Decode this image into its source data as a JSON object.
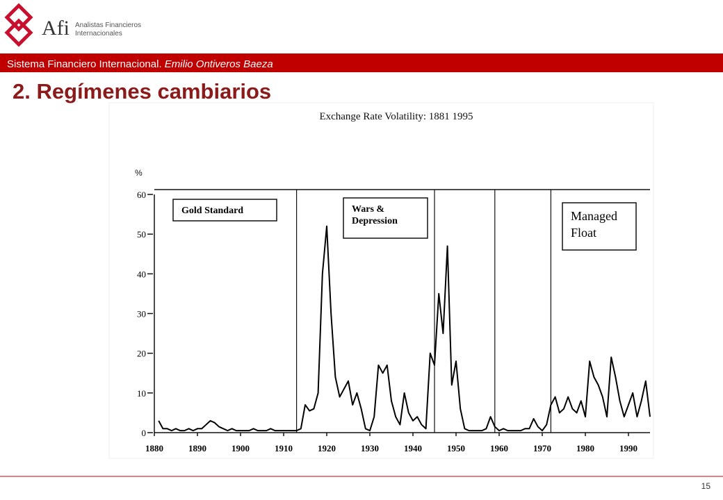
{
  "header": {
    "logo": "Afi",
    "company_line1": "Analistas Financieros",
    "company_line2": "Internacionales",
    "banner": "Sistema Financiero Internacional. ",
    "banner_author": "Emilio Ontiveros Baeza",
    "slide_title": "2. Regímenes cambiarios"
  },
  "page_number": "15",
  "chart_data": {
    "type": "line",
    "title": "Exchange Rate Volatility: 1881 1995",
    "y_label": "%",
    "x": [
      1881,
      1882,
      1883,
      1884,
      1885,
      1886,
      1887,
      1888,
      1889,
      1890,
      1891,
      1892,
      1893,
      1894,
      1895,
      1896,
      1897,
      1898,
      1899,
      1900,
      1901,
      1902,
      1903,
      1904,
      1905,
      1906,
      1907,
      1908,
      1909,
      1910,
      1911,
      1912,
      1913,
      1914,
      1915,
      1916,
      1917,
      1918,
      1919,
      1920,
      1921,
      1922,
      1923,
      1924,
      1925,
      1926,
      1927,
      1928,
      1929,
      1930,
      1931,
      1932,
      1933,
      1934,
      1935,
      1936,
      1937,
      1938,
      1939,
      1940,
      1941,
      1942,
      1943,
      1944,
      1945,
      1946,
      1947,
      1948,
      1949,
      1950,
      1951,
      1952,
      1953,
      1954,
      1955,
      1956,
      1957,
      1958,
      1959,
      1960,
      1961,
      1962,
      1963,
      1964,
      1965,
      1966,
      1967,
      1968,
      1969,
      1970,
      1971,
      1972,
      1973,
      1974,
      1975,
      1976,
      1977,
      1978,
      1979,
      1980,
      1981,
      1982,
      1983,
      1984,
      1985,
      1986,
      1987,
      1988,
      1989,
      1990,
      1991,
      1992,
      1993,
      1994,
      1995
    ],
    "values": [
      3,
      1,
      1,
      0.5,
      1,
      0.5,
      0.5,
      1,
      0.5,
      1,
      1,
      2,
      3,
      2.5,
      1.5,
      1,
      0.5,
      1,
      0.5,
      0.5,
      0.5,
      0.5,
      1,
      0.5,
      0.5,
      0.5,
      1,
      0.5,
      0.5,
      0.5,
      0.5,
      0.5,
      0.5,
      1,
      7,
      5.5,
      6,
      10,
      40,
      52,
      30,
      14,
      9,
      11,
      13,
      7,
      10,
      6,
      1,
      0.5,
      4,
      17,
      15,
      17,
      8,
      4,
      2,
      10,
      5,
      3,
      4,
      2,
      1,
      20,
      17,
      35,
      25,
      47,
      12,
      18,
      6,
      1,
      0.5,
      0.5,
      0.5,
      0.5,
      1,
      4,
      1.5,
      0.5,
      1,
      0.5,
      0.5,
      0.5,
      0.5,
      1,
      1,
      3.5,
      1.5,
      0.5,
      2,
      7,
      9,
      5,
      6,
      9,
      6,
      5,
      8,
      4,
      18,
      14,
      12,
      9,
      4,
      19,
      14,
      8,
      4,
      7,
      10,
      4,
      8,
      13,
      4
    ],
    "color": "#000000",
    "xlim": [
      1880,
      1995
    ],
    "xticks": [
      1880,
      1890,
      1900,
      1910,
      1920,
      1930,
      1940,
      1950,
      1960,
      1970,
      1980,
      1990
    ],
    "ylim": [
      0,
      60
    ],
    "yticks": [
      0,
      10,
      20,
      30,
      40,
      50,
      60
    ],
    "regime_lines": [
      1913,
      1945,
      1959,
      1972
    ],
    "annotations": [
      {
        "lines": [
          "Gold Standard"
        ]
      },
      {
        "lines": [
          "Wars &",
          "Depression"
        ]
      },
      {
        "lines": [
          "Managed",
          "Float"
        ]
      }
    ]
  }
}
